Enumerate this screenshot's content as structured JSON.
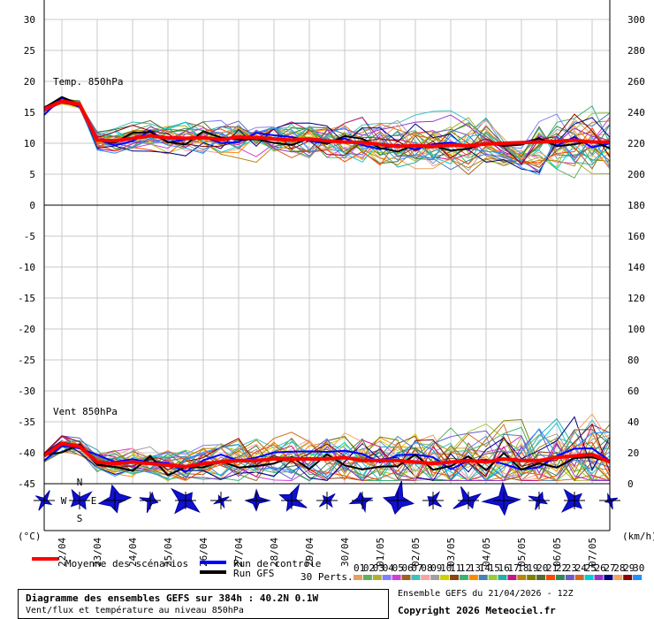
{
  "footer": {
    "title": "Diagramme des ensembles GEFS sur 384h : 40.2N 0.1W",
    "subtitle": "Vent/flux et température au niveau 850hPa",
    "run_info": "Ensemble GEFS du 21/04/2026 - 12Z",
    "copyright": "Copyright 2026 Meteociel.fr"
  },
  "legend": {
    "mean": "Moyenne des scénarios",
    "control": "Run de contrôle",
    "gfs": "Run GFS",
    "perts_label": "30 Perts.",
    "pert_numbers": [
      "01",
      "02",
      "03",
      "04",
      "05",
      "06",
      "07",
      "08",
      "09",
      "10",
      "11",
      "12",
      "13",
      "14",
      "15",
      "16",
      "17",
      "18",
      "19",
      "20",
      "21",
      "22",
      "23",
      "24",
      "25",
      "26",
      "27",
      "28",
      "29",
      "30"
    ],
    "pert_colors": [
      "#e8a060",
      "#60b060",
      "#b0b030",
      "#8080ff",
      "#d040d0",
      "#a06020",
      "#40c0c0",
      "#ffa0a0",
      "#a0a0a0",
      "#d0d000",
      "#8b4513",
      "#3cb371",
      "#ff8c00",
      "#4682b4",
      "#9acd32",
      "#20b2aa",
      "#c71585",
      "#b8860b",
      "#808000",
      "#556b2f",
      "#ff4500",
      "#2e8b57",
      "#6a5acd",
      "#d2691e",
      "#00ced1",
      "#9932cc",
      "#000080",
      "#f4a460",
      "#8b0000",
      "#1e90ff"
    ],
    "mean_color": "#ff0000",
    "control_color": "#0000ff",
    "gfs_color": "#000000"
  },
  "chart_data": {
    "type": "line",
    "x_categories": [
      "22/04",
      "23/04",
      "24/04",
      "25/04",
      "26/04",
      "27/04",
      "28/04",
      "29/04",
      "30/04",
      "01/05",
      "02/05",
      "03/05",
      "04/05",
      "05/05",
      "06/05",
      "07/05"
    ],
    "left_axis": {
      "unit": "(°C)",
      "ticks": [
        "30",
        "25",
        "20",
        "15",
        "10",
        "5",
        "0",
        "-5",
        "-10",
        "-15",
        "-20",
        "-25",
        "-30",
        "-35",
        "-40",
        "-45"
      ]
    },
    "right_axis": {
      "unit": "(km/h)",
      "ticks": [
        "300",
        "280",
        "260",
        "240",
        "220",
        "200",
        "180",
        "160",
        "140",
        "120",
        "100",
        "80",
        "60",
        "40",
        "20",
        "0"
      ]
    },
    "panels": {
      "temperature": "Temp. 850hPa",
      "wind": "Vent 850hPa"
    },
    "compass": {
      "north": "N",
      "south": "S",
      "west": "W",
      "east": "E"
    },
    "series": [
      {
        "name": "Moyenne des scénarios (Temp. 850hPa)",
        "x_hours": [
          0,
          12,
          24,
          36,
          48,
          60,
          72,
          84,
          96,
          108,
          120,
          132,
          144,
          156,
          168,
          180,
          192,
          204,
          216,
          228,
          240,
          252,
          264,
          276,
          288,
          300,
          312,
          324,
          336,
          348,
          360,
          372,
          384
        ],
        "values": [
          15.5,
          16.8,
          16.3,
          10.5,
          10.4,
          10.8,
          11.2,
          10.9,
          10.8,
          10.9,
          10.6,
          11.0,
          10.9,
          10.7,
          10.5,
          10.7,
          10.4,
          10.2,
          10.1,
          9.8,
          9.5,
          9.6,
          9.5,
          9.7,
          9.6,
          9.9,
          10.0,
          10.1,
          10.2,
          10.3,
          10.5,
          10.2,
          10.2
        ]
      },
      {
        "name": "Moyenne des scénarios (Vent 850hPa)",
        "x_hours": [
          0,
          12,
          24,
          36,
          48,
          60,
          72,
          84,
          96,
          108,
          120,
          132,
          144,
          156,
          168,
          180,
          192,
          204,
          216,
          228,
          240,
          252,
          264,
          276,
          288,
          300,
          312,
          324,
          336,
          348,
          360,
          372,
          384
        ],
        "values": [
          18,
          26,
          24,
          14,
          13,
          14,
          13,
          12,
          11,
          13,
          14,
          15,
          15,
          16,
          16,
          16,
          16,
          17,
          15,
          15,
          15,
          14,
          13,
          14,
          15,
          14,
          16,
          15,
          15,
          17,
          18,
          19,
          14
        ]
      }
    ]
  }
}
